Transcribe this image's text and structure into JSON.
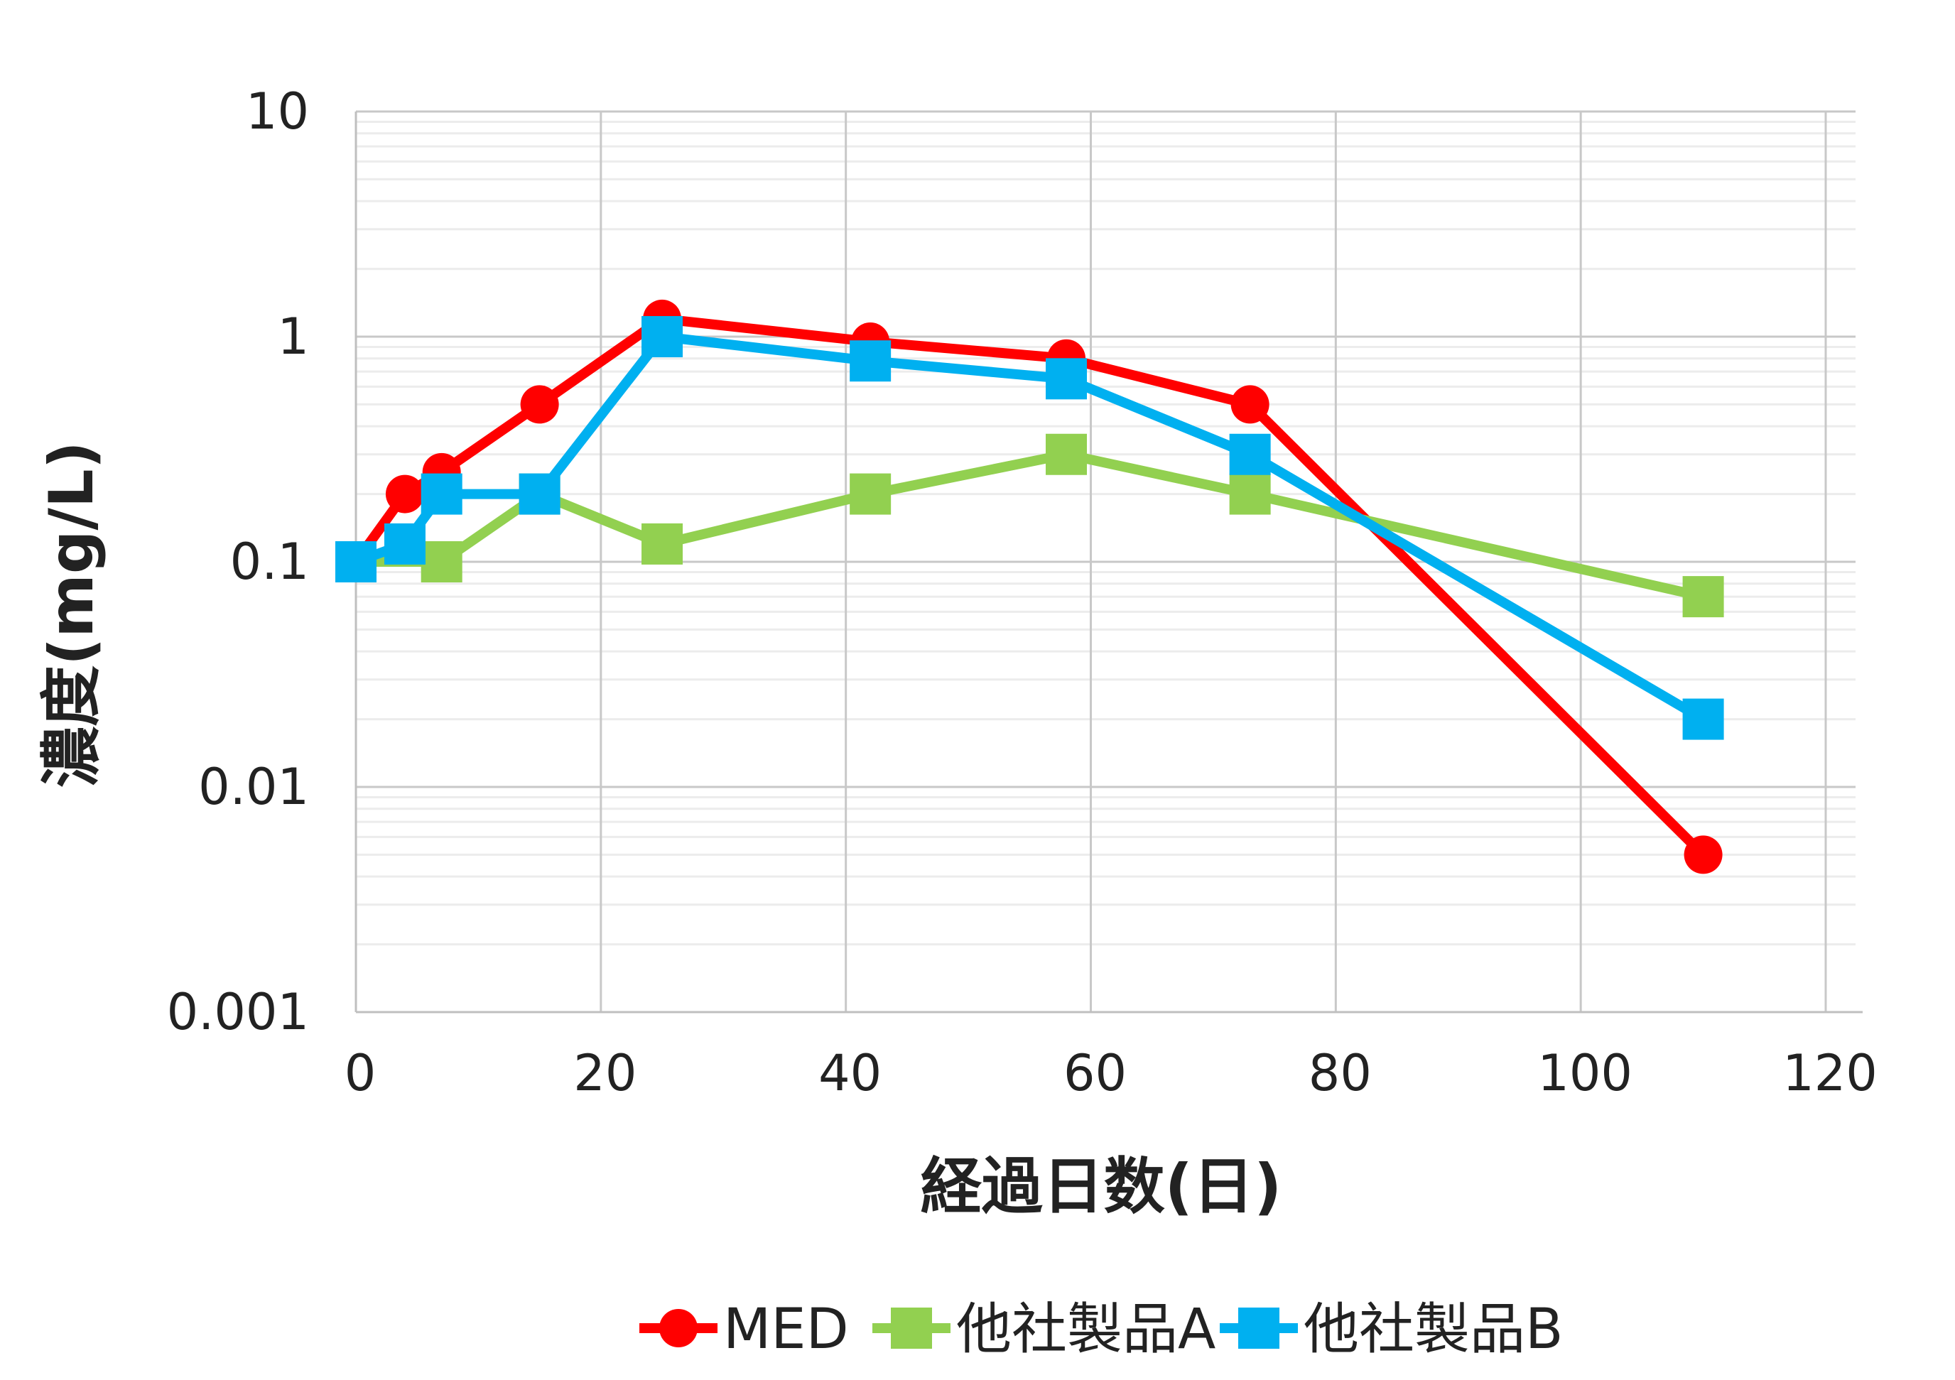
{
  "chart_data": {
    "type": "line",
    "title": "",
    "xlabel": "経過日数(日)",
    "ylabel": "濃度(mg/L)",
    "xlim": [
      0,
      120
    ],
    "ylim": [
      0.001,
      10
    ],
    "y_scale": "log",
    "x_ticks": [
      0,
      20,
      40,
      60,
      80,
      100,
      120
    ],
    "x_tick_labels": [
      "0",
      "20",
      "40",
      "60",
      "80",
      "100",
      "120"
    ],
    "y_ticks": [
      0.001,
      0.01,
      0.1,
      1,
      10
    ],
    "y_tick_labels": [
      "0.001",
      "0.01",
      "0.1",
      "1",
      "10"
    ],
    "grid": true,
    "legend_position": "bottom",
    "series": [
      {
        "name": "MED",
        "color": "#ff0000",
        "marker": "circle",
        "x": [
          0,
          4,
          7,
          15,
          25,
          42,
          58,
          73,
          110
        ],
        "y": [
          0.1,
          0.2,
          0.25,
          0.5,
          1.2,
          0.95,
          0.8,
          0.5,
          0.005
        ]
      },
      {
        "name": "他社製品A",
        "color": "#92d050",
        "marker": "square",
        "x": [
          0,
          7,
          15,
          25,
          42,
          58,
          73,
          110
        ],
        "y": [
          0.1,
          0.1,
          0.2,
          0.12,
          0.2,
          0.3,
          0.2,
          0.07
        ]
      },
      {
        "name": "他社製品B",
        "color": "#00b0f0",
        "marker": "square",
        "x": [
          0,
          4,
          7,
          15,
          25,
          42,
          58,
          73,
          110
        ],
        "y": [
          0.1,
          0.12,
          0.2,
          0.2,
          1.0,
          0.78,
          0.65,
          0.3,
          0.02
        ]
      }
    ]
  }
}
